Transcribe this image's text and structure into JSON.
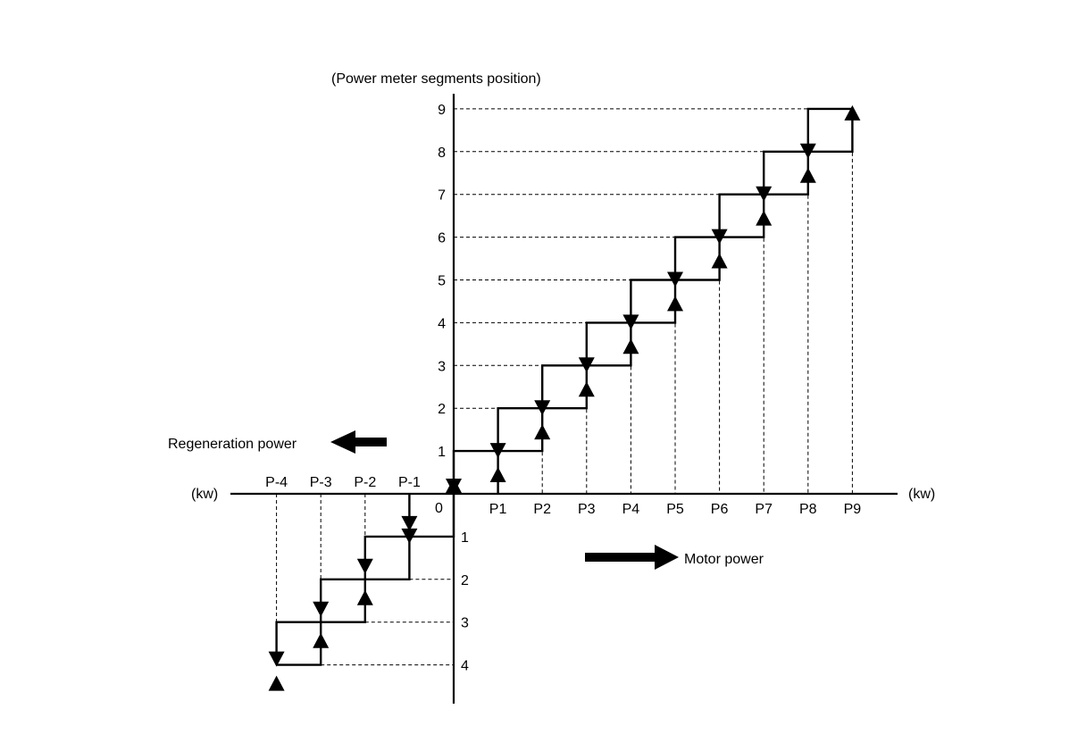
{
  "y_axis_title": "(Power meter segments position)",
  "x_unit_left": "(kw)",
  "x_unit_right": "(kw)",
  "origin_label": "0",
  "regeneration_label": "Regeneration power",
  "motor_label": "Motor power",
  "positive_x_labels": [
    "P1",
    "P2",
    "P3",
    "P4",
    "P5",
    "P6",
    "P7",
    "P8",
    "P9"
  ],
  "negative_x_labels": [
    "P-1",
    "P-2",
    "P-3",
    "P-4"
  ],
  "positive_y_labels": [
    "1",
    "2",
    "3",
    "4",
    "5",
    "6",
    "7",
    "8",
    "9"
  ],
  "negative_y_labels": [
    "1",
    "2",
    "3",
    "4"
  ],
  "arrow_color": "#000000",
  "line_color": "#000000"
}
